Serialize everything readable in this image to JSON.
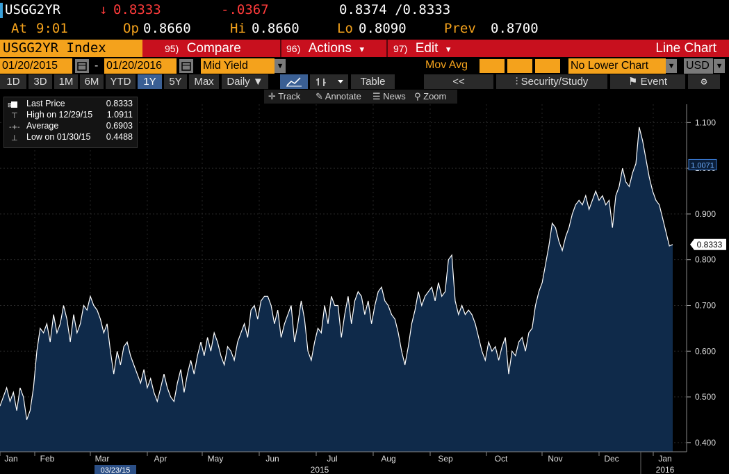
{
  "quote": {
    "ticker": "USGG2YR",
    "arrow": "↓",
    "last": "0.8333",
    "change": "-.0367",
    "bid_ask": "0.8374 /0.8333",
    "at_label": "At",
    "time": "9:01",
    "open_label": "Op",
    "open": "0.8660",
    "high_label": "Hi",
    "high": "0.8660",
    "low_label": "Lo",
    "low": "0.8090",
    "prev_label": "Prev",
    "prev": "0.8700"
  },
  "toolbar": {
    "index_label": "USGG2YR Index",
    "compare_num": "95)",
    "compare": "Compare",
    "actions_num": "96)",
    "actions": "Actions",
    "edit_num": "97)",
    "edit": "Edit",
    "chart_type": "Line Chart",
    "dropdown_arrow": "▾"
  },
  "range": {
    "start": "01/20/2015",
    "dash": "-",
    "end": "01/20/2016",
    "field": "Mid Yield",
    "mov_avg": "Mov Avg",
    "lower_chart": "No Lower Chart",
    "currency": "USD"
  },
  "timeframes": [
    "1D",
    "3D",
    "1M",
    "6M",
    "YTD",
    "1Y",
    "5Y",
    "Max"
  ],
  "active_timeframe": "1Y",
  "tools": {
    "period": "Daily ▼",
    "table": "Table",
    "back": "<<",
    "security_study": "Security/Study",
    "event": "Event"
  },
  "subtools": {
    "track": "Track",
    "annotate": "Annotate",
    "news": "News",
    "zoom": "Zoom"
  },
  "legend": {
    "last_label": "Last Price",
    "last_value": "0.8333",
    "high_label": "High on 12/29/15",
    "high_value": "1.0911",
    "avg_label": "Average",
    "avg_value": "0.6903",
    "low_label": "Low on 01/30/15",
    "low_value": "0.4488"
  },
  "colors": {
    "accent": "#f4a21c",
    "toolbar_red": "#c8101e",
    "change_red": "#ff3b3b",
    "area_fill": "#0f2a4a",
    "line": "#ffffff"
  },
  "chart_data": {
    "type": "area",
    "ylim": [
      0.38,
      1.14
    ],
    "yticks": [
      "1.100",
      "1.000",
      "0.900",
      "0.800",
      "0.700",
      "0.600",
      "0.500",
      "0.400"
    ],
    "ytick_values": [
      1.1,
      1.0,
      0.9,
      0.8,
      0.7,
      0.6,
      0.5,
      0.4
    ],
    "month_labels": [
      "Jan",
      "Feb",
      "Mar",
      "Apr",
      "May",
      "Jun",
      "Jul",
      "Aug",
      "Sep",
      "Oct",
      "Nov",
      "Dec",
      "Jan"
    ],
    "year_labels": [
      "2015",
      "2016"
    ],
    "highlighted_date": "03/23/15",
    "last_marker": "0.8333",
    "cursor_marker": "1.0071",
    "cursor_value": 1.0071,
    "series": [
      {
        "values": [
          0.48,
          0.5,
          0.52,
          0.49,
          0.51,
          0.47,
          0.52,
          0.5,
          0.45,
          0.47,
          0.52,
          0.6,
          0.65,
          0.64,
          0.66,
          0.62,
          0.68,
          0.64,
          0.66,
          0.7,
          0.67,
          0.62,
          0.68,
          0.64,
          0.66,
          0.7,
          0.69,
          0.72,
          0.7,
          0.69,
          0.67,
          0.64,
          0.66,
          0.6,
          0.55,
          0.6,
          0.57,
          0.61,
          0.62,
          0.59,
          0.57,
          0.55,
          0.53,
          0.56,
          0.52,
          0.54,
          0.51,
          0.49,
          0.52,
          0.55,
          0.52,
          0.5,
          0.49,
          0.53,
          0.56,
          0.51,
          0.55,
          0.58,
          0.55,
          0.59,
          0.62,
          0.59,
          0.63,
          0.6,
          0.64,
          0.62,
          0.59,
          0.57,
          0.61,
          0.6,
          0.58,
          0.62,
          0.64,
          0.66,
          0.63,
          0.69,
          0.7,
          0.67,
          0.71,
          0.72,
          0.72,
          0.7,
          0.66,
          0.69,
          0.63,
          0.66,
          0.68,
          0.7,
          0.62,
          0.66,
          0.71,
          0.67,
          0.6,
          0.58,
          0.62,
          0.65,
          0.64,
          0.7,
          0.66,
          0.72,
          0.7,
          0.7,
          0.63,
          0.68,
          0.72,
          0.66,
          0.71,
          0.73,
          0.72,
          0.68,
          0.71,
          0.66,
          0.7,
          0.73,
          0.74,
          0.71,
          0.7,
          0.68,
          0.67,
          0.64,
          0.6,
          0.57,
          0.61,
          0.66,
          0.69,
          0.73,
          0.7,
          0.72,
          0.73,
          0.74,
          0.71,
          0.75,
          0.72,
          0.73,
          0.8,
          0.81,
          0.71,
          0.68,
          0.7,
          0.68,
          0.69,
          0.68,
          0.66,
          0.63,
          0.6,
          0.58,
          0.62,
          0.6,
          0.61,
          0.58,
          0.61,
          0.63,
          0.55,
          0.6,
          0.59,
          0.62,
          0.63,
          0.6,
          0.64,
          0.65,
          0.7,
          0.73,
          0.75,
          0.79,
          0.83,
          0.88,
          0.87,
          0.84,
          0.82,
          0.85,
          0.87,
          0.9,
          0.92,
          0.93,
          0.92,
          0.94,
          0.91,
          0.93,
          0.95,
          0.93,
          0.94,
          0.92,
          0.93,
          0.87,
          0.94,
          0.96,
          1.0,
          0.97,
          0.96,
          0.99,
          1.01,
          1.09,
          1.06,
          1.02,
          0.98,
          0.95,
          0.93,
          0.92,
          0.89,
          0.86,
          0.83,
          0.8333
        ]
      }
    ]
  }
}
